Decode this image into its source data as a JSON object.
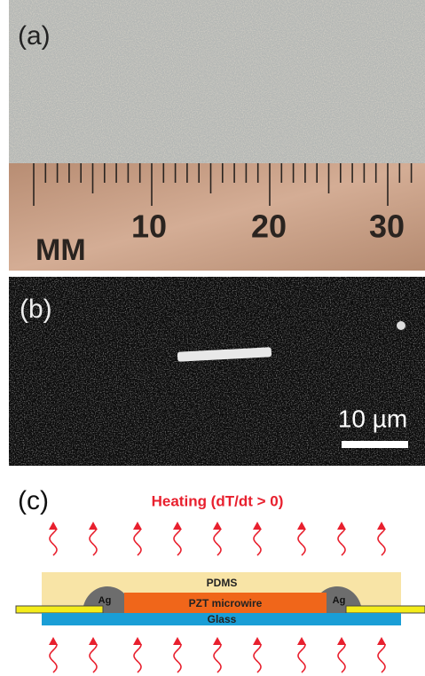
{
  "panels": [
    {
      "label": "(a)",
      "ruler_unit": "MM",
      "ruler_labels": [
        "10",
        "20",
        "30"
      ]
    },
    {
      "label": "(b)",
      "scale_bar": "10 µm"
    },
    {
      "label": "(c)",
      "title": "Heating (dT/dt > 0)",
      "layers": {
        "top": "PDMS",
        "electrode_left": "Ag",
        "electrode_right": "Ag",
        "wire": "PZT microwire",
        "substrate": "Glass"
      }
    }
  ]
}
